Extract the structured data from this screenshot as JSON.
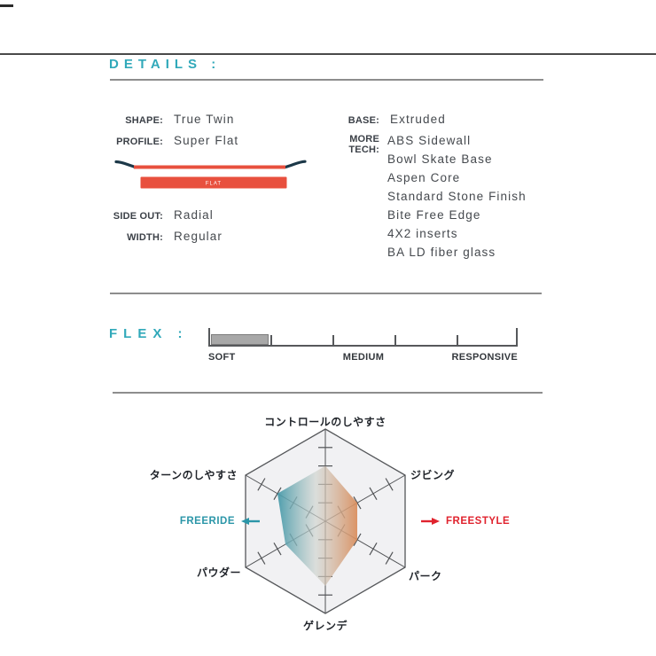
{
  "details": {
    "heading": "DETAILS :",
    "left_specs_top": [
      {
        "label": "SHAPE:",
        "value": "True Twin"
      },
      {
        "label": "PROFILE:",
        "value": "Super Flat"
      }
    ],
    "profile_graphic": {
      "bar_label": "FLAT"
    },
    "left_specs_bottom": [
      {
        "label": "SIDE OUT:",
        "value": "Radial"
      },
      {
        "label": "WIDTH:",
        "value": "Regular"
      }
    ],
    "right_specs": [
      {
        "label": "BASE:",
        "values": [
          "Extruded"
        ]
      },
      {
        "label": "MORE TECH:",
        "values": [
          "ABS Sidewall",
          "Bowl Skate Base",
          "Aspen Core",
          "Standard Stone Finish",
          "Bite Free Edge",
          "4X2 inserts",
          "BA LD fiber glass"
        ]
      }
    ]
  },
  "flex": {
    "heading": "FLEX :",
    "scale_labels": [
      "SOFT",
      "MEDIUM",
      "RESPONSIVE"
    ],
    "segments": 5,
    "filled_segments": 1
  },
  "chart_data": {
    "type": "radar",
    "categories": [
      "コントロールのしやすさ",
      "ジビング",
      "パーク",
      "ゲレンデ",
      "パウダー",
      "ターンのしやすさ"
    ],
    "values": [
      3,
      2,
      2,
      3.5,
      2.5,
      3
    ],
    "max": 5,
    "rings": 5,
    "grid_shape": "hexagon",
    "legend_left": "FREERIDE",
    "legend_right": "FREESTYLE",
    "fill": "horizontal gradient teal to orange"
  },
  "colors": {
    "accent_teal": "#31a9ba",
    "accent_red": "#e8503e",
    "freestyle_red": "#e0232e",
    "freeride_teal": "#2b96a8",
    "board_navy": "#1c3848",
    "radar_teal": "#4197a7",
    "radar_orange": "#d98c5a"
  }
}
